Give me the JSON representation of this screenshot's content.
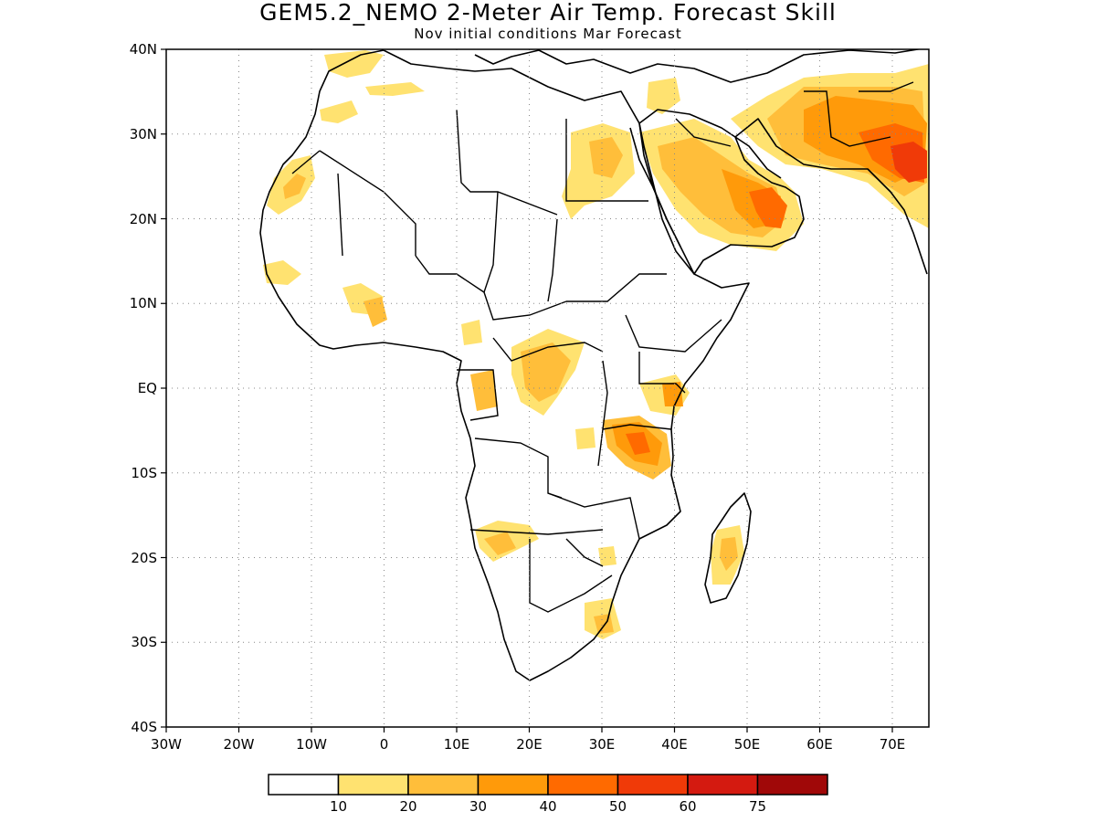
{
  "header": {
    "title": "GEM5.2_NEMO 2-Meter Air Temp. Forecast Skill",
    "subtitle": "Nov initial conditions  Mar Forecast"
  },
  "axes": {
    "lat_labels": [
      "40N",
      "30N",
      "20N",
      "10N",
      "EQ",
      "10S",
      "20S",
      "30S",
      "40S"
    ],
    "lon_labels": [
      "30W",
      "20W",
      "10W",
      "0",
      "10E",
      "20E",
      "30E",
      "40E",
      "50E",
      "60E",
      "70E"
    ],
    "lon_range": [
      -30,
      75
    ],
    "lat_range": [
      -40,
      40
    ],
    "grid": "dotted"
  },
  "colorbar": {
    "levels": [
      "10",
      "20",
      "30",
      "40",
      "50",
      "60",
      "75"
    ],
    "colors": [
      "#ffffff",
      "#ffe270",
      "#ffbe3a",
      "#ff9a0a",
      "#ff6a00",
      "#f03a08",
      "#d41a10",
      "#a00808"
    ]
  },
  "palette": {
    "skill_10_20": "#ffe270",
    "skill_20_30": "#ffbe3a",
    "skill_30_40": "#ff9a0a",
    "skill_40_50": "#ff6a00",
    "skill_50_60": "#f03a08"
  }
}
